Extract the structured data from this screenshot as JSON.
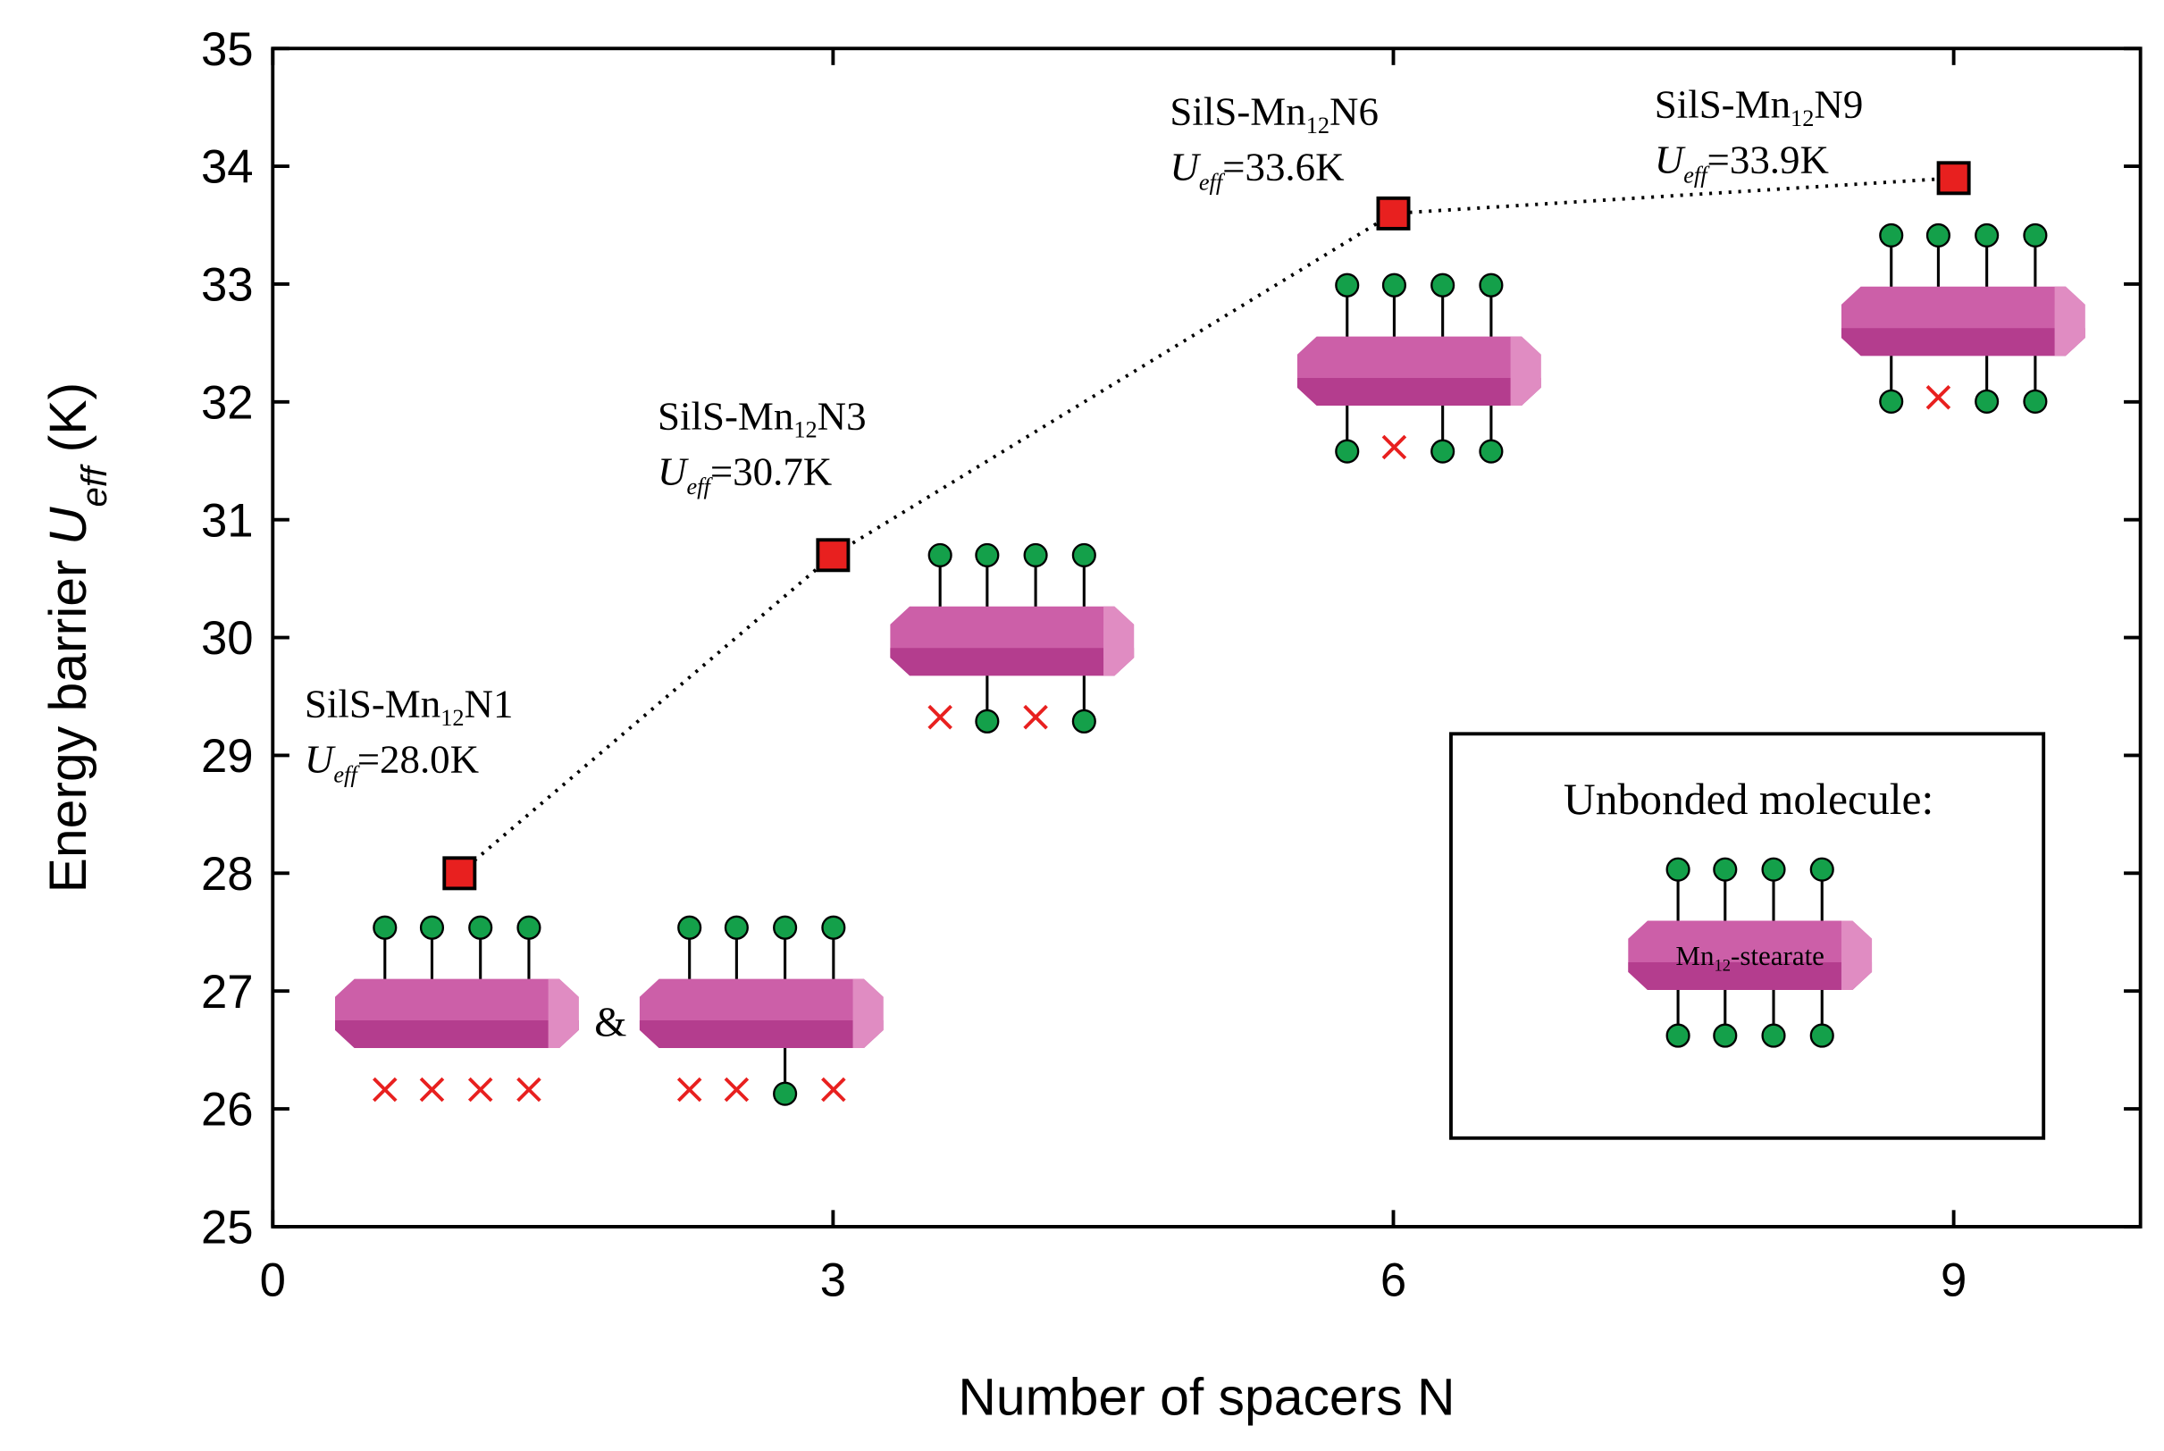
{
  "chart_data": {
    "type": "scatter",
    "x_label": "Number of spacers N",
    "y_label": [
      "Energy barrier ",
      "U",
      "eff",
      " (K)"
    ],
    "x": [
      1,
      3,
      6,
      9
    ],
    "values": [
      28.0,
      30.7,
      33.6,
      33.9
    ],
    "color": "#e8201f",
    "line_style": "dotted",
    "xlim": [
      0,
      10
    ],
    "xticks": [
      0,
      3,
      6,
      9
    ],
    "ylim": [
      25,
      35
    ],
    "yticks": [
      25,
      26,
      27,
      28,
      29,
      30,
      31,
      32,
      33,
      34,
      35
    ],
    "annotations": [
      {
        "name": [
          "SilS-Mn",
          "12",
          "N1"
        ],
        "u": [
          "U",
          "eff",
          "=28.0K"
        ]
      },
      {
        "name": [
          "SilS-Mn",
          "12",
          "N3"
        ],
        "u": [
          "U",
          "eff",
          "=30.7K"
        ]
      },
      {
        "name": [
          "SilS-Mn",
          "12",
          "N6"
        ],
        "u": [
          "U",
          "eff",
          "=33.6K"
        ]
      },
      {
        "name": [
          "SilS-Mn",
          "12",
          "N9"
        ],
        "u": [
          "U",
          "eff",
          "=33.9K"
        ]
      }
    ],
    "ampersand": "&",
    "inset_title": "Unbonded molecule:",
    "inset_label": [
      "Mn",
      "12",
      "-stearate"
    ]
  }
}
